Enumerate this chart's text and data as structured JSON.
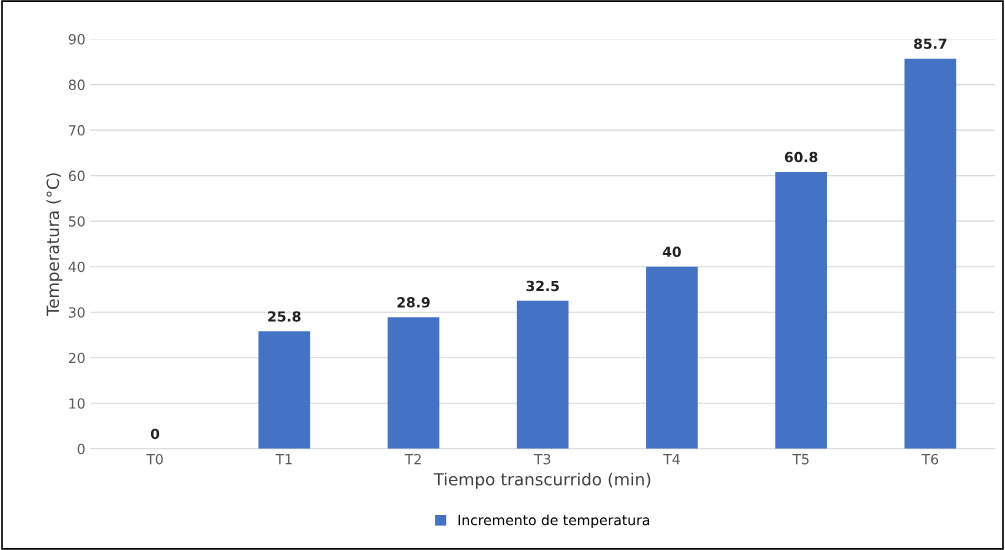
{
  "chart_data": {
    "type": "bar",
    "xlabel": "Tiempo transcurrido (min)",
    "ylabel": "Temperatura (°C)",
    "categories": [
      "T0",
      "T1",
      "T2",
      "T3",
      "T4",
      "T5",
      "T6"
    ],
    "series": [
      {
        "name": "Incremento de temperatura",
        "color": "#4472c4",
        "values": [
          0,
          25.8,
          28.9,
          32.5,
          40,
          60.8,
          85.7
        ]
      }
    ],
    "ylim": [
      0,
      90
    ],
    "yticks": [
      0,
      10,
      20,
      30,
      40,
      50,
      60,
      70,
      80,
      90
    ],
    "grid": "y",
    "legend": "bottom",
    "data_labels": true
  }
}
